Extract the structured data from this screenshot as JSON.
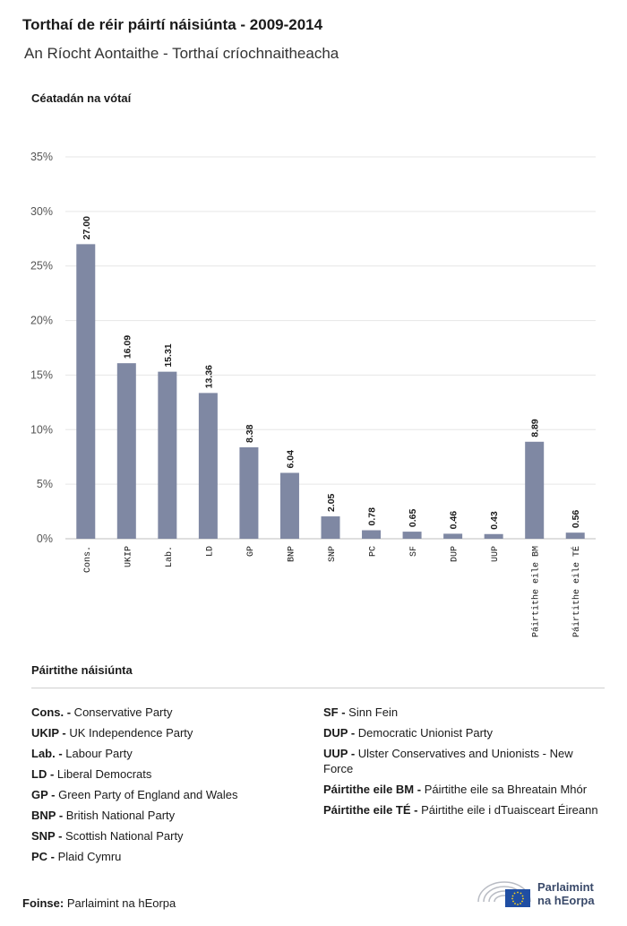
{
  "header": {
    "title": "Torthaí de réir páirtí náisiúnta - 2009-2014",
    "subtitle": "An Ríocht Aontaithe - Torthaí críochnaitheacha"
  },
  "chart_data": {
    "type": "bar",
    "ylabel": "Céatadán na vótaí",
    "ylim": [
      0,
      35
    ],
    "yticks": [
      0,
      5,
      10,
      15,
      20,
      25,
      30,
      35
    ],
    "ytick_labels": [
      "0%",
      "5%",
      "10%",
      "15%",
      "20%",
      "25%",
      "30%",
      "35%"
    ],
    "grid": true,
    "bar_color": "#7f88a3",
    "categories": [
      "Cons.",
      "UKIP",
      "Lab.",
      "LD",
      "GP",
      "BNP",
      "SNP",
      "PC",
      "SF",
      "DUP",
      "UUP",
      "Páirtithe eile BM",
      "Páirtithe eile TÉ"
    ],
    "values": [
      27.0,
      16.09,
      15.31,
      13.36,
      8.38,
      6.04,
      2.05,
      0.78,
      0.65,
      0.46,
      0.43,
      8.89,
      0.56
    ],
    "value_labels": [
      "27.00",
      "16.09",
      "15.31",
      "13.36",
      "8.38",
      "6.04",
      "2.05",
      "0.78",
      "0.65",
      "0.46",
      "0.43",
      "8.89",
      "0.56"
    ]
  },
  "legend": {
    "title": "Páirtithe náisiúnta",
    "left": [
      {
        "abbr": "Cons. -",
        "name": "Conservative Party"
      },
      {
        "abbr": "UKIP -",
        "name": "UK Independence Party"
      },
      {
        "abbr": "Lab. -",
        "name": "Labour Party"
      },
      {
        "abbr": "LD -",
        "name": "Liberal Democrats"
      },
      {
        "abbr": "GP -",
        "name": "Green Party of England and Wales"
      },
      {
        "abbr": "BNP -",
        "name": "British National Party"
      },
      {
        "abbr": "SNP -",
        "name": "Scottish National Party"
      },
      {
        "abbr": "PC -",
        "name": "Plaid Cymru"
      }
    ],
    "right": [
      {
        "abbr": "SF -",
        "name": "Sinn Fein"
      },
      {
        "abbr": "DUP -",
        "name": "Democratic Unionist Party"
      },
      {
        "abbr": "UUP -",
        "name": "Ulster Conservatives and Unionists - New Force"
      },
      {
        "abbr": "Páirtithe eile BM -",
        "name": "Páirtithe eile sa Bhreatain Mhór"
      },
      {
        "abbr": "Páirtithe eile TÉ -",
        "name": "Páirtithe eile i dTuaisceart Éireann"
      }
    ]
  },
  "footer": {
    "source_label": "Foinse:",
    "source_text": "Parlaimint na hEorpa",
    "logo_line1": "Parlaimint",
    "logo_line2": "na hEorpa",
    "logo_icon": "european-parliament-logo-icon"
  }
}
